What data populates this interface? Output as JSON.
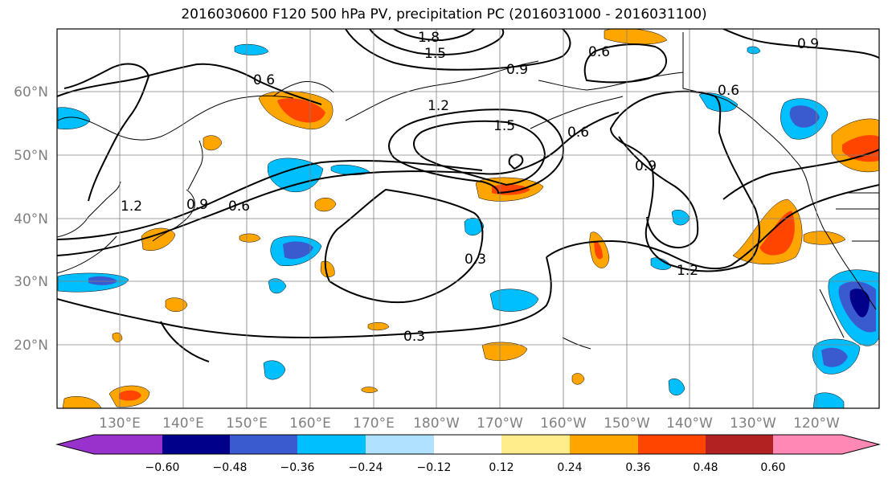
{
  "title": "2016030600 F120 500 hPa PV, precipitation PC (2016031000 - 2016031100)",
  "map": {
    "lat_labels": [
      "60°N",
      "50°N",
      "40°N",
      "30°N",
      "20°N"
    ],
    "lon_labels": [
      "130°E",
      "140°E",
      "150°E",
      "160°E",
      "170°E",
      "180°W",
      "170°W",
      "160°W",
      "150°W",
      "140°W",
      "130°W",
      "120°W"
    ],
    "pv_contour_labels": [
      "1.8",
      "1.5",
      "0.9",
      "0.6",
      "0.9",
      "0.6",
      "1.2",
      "1.5",
      "0.6",
      "0.9",
      "1.2",
      "0.9",
      "0.6",
      "0.3",
      "1.2",
      "0.3",
      "0.6"
    ]
  },
  "colorbar": {
    "ticks": [
      "−0.60",
      "−0.48",
      "−0.36",
      "−0.24",
      "−0.12",
      "0.12",
      "0.24",
      "0.36",
      "0.48",
      "0.60"
    ],
    "colors": [
      "#9932cc",
      "#00008b",
      "#3a5bcf",
      "#00bfff",
      "#b0e2ff",
      "#ffffff",
      "#ffec8b",
      "#ffa500",
      "#ff4500",
      "#b22222",
      "#ff89b4"
    ]
  },
  "palette": {
    "orange": "#ffa500",
    "red": "#ff4500",
    "yellow": "#ffec8b",
    "skyblue": "#00bfff",
    "lightblue": "#b0e2ff",
    "royal": "#3a5bcf",
    "navy": "#00008b"
  }
}
